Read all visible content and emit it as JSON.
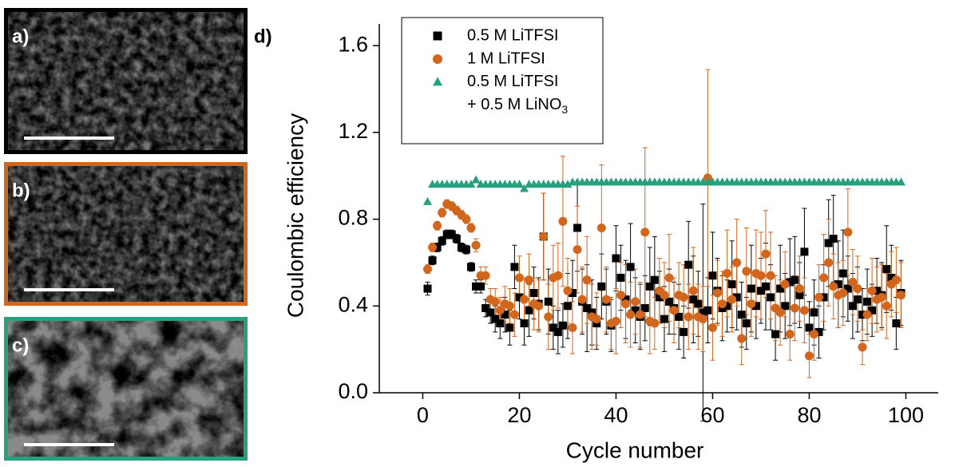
{
  "panels": [
    {
      "label": "a)",
      "color": "#000000"
    },
    {
      "label": "b)",
      "color": "#d2661c"
    },
    {
      "label": "c)",
      "color": "#27a07d"
    }
  ],
  "chart_data": {
    "type": "scatter",
    "panel_label": "d)",
    "xlabel": "Cycle number",
    "ylabel": "Coulombic efficiency",
    "xlim": [
      -9,
      106.7
    ],
    "ylim": [
      0,
      1.7
    ],
    "xticks": [
      0,
      20,
      40,
      60,
      80,
      100
    ],
    "yticks": [
      {
        "value": 0,
        "label": "0.0"
      },
      0.4,
      0.8,
      1.2,
      1.6
    ],
    "legend": "upper left",
    "x": [
      1,
      2,
      3,
      4,
      5,
      6,
      7,
      8,
      9,
      10,
      11,
      12,
      13,
      14,
      15,
      16,
      17,
      18,
      19,
      20,
      21,
      22,
      23,
      24,
      25,
      26,
      27,
      28,
      29,
      30,
      31,
      32,
      33,
      34,
      35,
      36,
      37,
      38,
      39,
      40,
      41,
      42,
      43,
      44,
      45,
      46,
      47,
      48,
      49,
      50,
      51,
      52,
      53,
      54,
      55,
      56,
      57,
      58,
      59,
      60,
      61,
      62,
      63,
      64,
      65,
      66,
      67,
      68,
      69,
      70,
      71,
      72,
      73,
      74,
      75,
      76,
      77,
      78,
      79,
      80,
      81,
      82,
      83,
      84,
      85,
      86,
      87,
      88,
      89,
      90,
      91,
      92,
      93,
      94,
      95,
      96,
      97,
      98,
      99
    ],
    "series": [
      {
        "name": "0.5 M LiTFSI",
        "color": "#000000",
        "marker": "square",
        "values": [
          0.48,
          0.61,
          0.67,
          0.7,
          0.73,
          0.73,
          0.71,
          0.67,
          0.66,
          0.58,
          0.49,
          0.49,
          0.39,
          0.37,
          0.34,
          0.32,
          0.36,
          0.3,
          0.58,
          0.44,
          0.32,
          0.38,
          0.46,
          0.41,
          0.72,
          0.42,
          0.3,
          0.28,
          0.31,
          0.4,
          0.46,
          0.76,
          0.42,
          0.39,
          0.37,
          0.32,
          0.49,
          0.42,
          0.31,
          0.62,
          0.53,
          0.43,
          0.58,
          0.38,
          0.35,
          0.39,
          0.49,
          0.52,
          0.44,
          0.34,
          0.42,
          0.39,
          0.35,
          0.28,
          0.59,
          0.43,
          0.41,
          0.37,
          0.38,
          0.54,
          0.47,
          0.39,
          0.4,
          0.5,
          0.44,
          0.36,
          0.32,
          0.48,
          0.4,
          0.47,
          0.49,
          0.44,
          0.27,
          0.48,
          0.4,
          0.51,
          0.52,
          0.45,
          0.65,
          0.3,
          0.37,
          0.28,
          0.44,
          0.69,
          0.71,
          0.5,
          0.55,
          0.48,
          0.4,
          0.43,
          0.36,
          0.42,
          0.38,
          0.47,
          0.45,
          0.57,
          0.53,
          0.32,
          0.46
        ],
        "errors": [
          0.03,
          0.02,
          0.02,
          0.02,
          0.02,
          0.02,
          0.02,
          0.02,
          0.02,
          0.02,
          0.03,
          0.03,
          0.04,
          0.05,
          0.06,
          0.07,
          0.08,
          0.08,
          0.1,
          0.1,
          0.1,
          0.12,
          0.12,
          0.12,
          0.2,
          0.15,
          0.1,
          0.1,
          0.1,
          0.15,
          0.15,
          0.2,
          0.15,
          0.2,
          0.15,
          0.12,
          0.15,
          0.15,
          0.12,
          0.15,
          0.15,
          0.18,
          0.2,
          0.15,
          0.15,
          0.15,
          0.18,
          0.2,
          0.12,
          0.15,
          0.15,
          0.12,
          0.15,
          0.12,
          0.2,
          0.2,
          0.15,
          0.5,
          0.15,
          0.2,
          0.15,
          0.15,
          0.12,
          0.2,
          0.15,
          0.15,
          0.12,
          0.2,
          0.15,
          0.15,
          0.2,
          0.15,
          0.12,
          0.2,
          0.15,
          0.2,
          0.2,
          0.15,
          0.2,
          0.12,
          0.15,
          0.12,
          0.15,
          0.2,
          0.2,
          0.2,
          0.2,
          0.15,
          0.15,
          0.15,
          0.12,
          0.15,
          0.12,
          0.15,
          0.15,
          0.2,
          0.15,
          0.12,
          0.15
        ]
      },
      {
        "name": "1 M LiTFSI",
        "color": "#d2661c",
        "marker": "circle",
        "values": [
          0.57,
          0.67,
          0.77,
          0.83,
          0.87,
          0.86,
          0.84,
          0.82,
          0.8,
          0.76,
          0.68,
          0.54,
          0.54,
          0.43,
          0.42,
          0.38,
          0.41,
          0.4,
          0.36,
          0.53,
          0.43,
          0.52,
          0.41,
          0.4,
          0.72,
          0.35,
          0.53,
          0.54,
          0.79,
          0.47,
          0.3,
          0.66,
          0.43,
          0.52,
          0.35,
          0.34,
          0.76,
          0.43,
          0.32,
          0.33,
          0.45,
          0.41,
          0.36,
          0.42,
          0.36,
          0.74,
          0.33,
          0.32,
          0.47,
          0.45,
          0.53,
          0.38,
          0.45,
          0.44,
          0.35,
          0.47,
          0.35,
          0.34,
          0.99,
          0.3,
          0.46,
          0.41,
          0.55,
          0.43,
          0.6,
          0.25,
          0.56,
          0.41,
          0.55,
          0.54,
          0.64,
          0.54,
          0.39,
          0.37,
          0.5,
          0.27,
          0.39,
          0.48,
          0.38,
          0.17,
          0.27,
          0.44,
          0.53,
          0.6,
          0.49,
          0.45,
          0.46,
          0.74,
          0.51,
          0.48,
          0.21,
          0.36,
          0.47,
          0.43,
          0.44,
          0.4,
          0.5,
          0.52,
          0.45
        ],
        "errors": [
          0.02,
          0.02,
          0.02,
          0.02,
          0.02,
          0.02,
          0.02,
          0.02,
          0.02,
          0.02,
          0.03,
          0.04,
          0.04,
          0.05,
          0.06,
          0.06,
          0.08,
          0.08,
          0.1,
          0.1,
          0.1,
          0.12,
          0.12,
          0.12,
          0.2,
          0.15,
          0.15,
          0.15,
          0.3,
          0.15,
          0.12,
          0.2,
          0.15,
          0.2,
          0.15,
          0.12,
          0.29,
          0.15,
          0.12,
          0.15,
          0.15,
          0.18,
          0.15,
          0.15,
          0.15,
          0.39,
          0.15,
          0.12,
          0.15,
          0.15,
          0.2,
          0.15,
          0.15,
          0.15,
          0.15,
          0.2,
          0.15,
          0.15,
          0.5,
          0.15,
          0.15,
          0.15,
          0.2,
          0.15,
          0.2,
          0.12,
          0.2,
          0.15,
          0.2,
          0.2,
          0.2,
          0.2,
          0.15,
          0.15,
          0.15,
          0.12,
          0.15,
          0.15,
          0.15,
          0.1,
          0.12,
          0.15,
          0.2,
          0.2,
          0.15,
          0.15,
          0.15,
          0.2,
          0.15,
          0.15,
          0.08,
          0.12,
          0.15,
          0.15,
          0.15,
          0.15,
          0.15,
          0.15,
          0.15
        ]
      },
      {
        "name": "0.5 M LiTFSI + 0.5 M LiNO3",
        "color": "#27a07d",
        "marker": "triangle",
        "values": [
          0.88,
          0.96,
          0.96,
          0.96,
          0.96,
          0.96,
          0.96,
          0.96,
          0.96,
          0.96,
          0.98,
          0.96,
          0.96,
          0.96,
          0.96,
          0.96,
          0.96,
          0.96,
          0.96,
          0.96,
          0.94,
          0.96,
          0.96,
          0.96,
          0.96,
          0.96,
          0.96,
          0.96,
          0.96,
          0.96,
          0.97,
          0.97,
          0.97,
          0.97,
          0.97,
          0.97,
          0.97,
          0.97,
          0.97,
          0.97,
          0.97,
          0.97,
          0.97,
          0.97,
          0.97,
          0.97,
          0.97,
          0.97,
          0.97,
          0.97,
          0.97,
          0.97,
          0.97,
          0.97,
          0.97,
          0.97,
          0.97,
          0.97,
          0.97,
          0.97,
          0.97,
          0.97,
          0.97,
          0.97,
          0.97,
          0.97,
          0.97,
          0.97,
          0.97,
          0.97,
          0.97,
          0.97,
          0.97,
          0.97,
          0.97,
          0.97,
          0.97,
          0.97,
          0.97,
          0.97,
          0.97,
          0.97,
          0.97,
          0.97,
          0.97,
          0.97,
          0.97,
          0.97,
          0.97,
          0.97,
          0.97,
          0.97,
          0.97,
          0.97,
          0.97,
          0.97,
          0.97,
          0.97,
          0.97
        ]
      }
    ]
  }
}
